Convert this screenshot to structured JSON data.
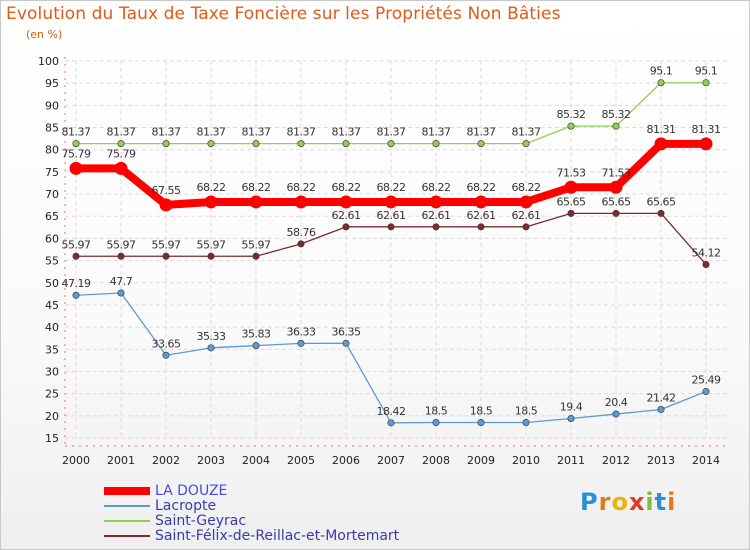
{
  "chart_data": {
    "type": "line",
    "title": "Evolution du Taux de Taxe Foncière sur les Propriétés Non Bâties",
    "ylabel": "(en %)",
    "xlabel": "",
    "ylim": [
      15,
      100
    ],
    "yticks": [
      15,
      20,
      25,
      30,
      35,
      40,
      45,
      50,
      55,
      60,
      65,
      70,
      75,
      80,
      85,
      90,
      95,
      100
    ],
    "x": [
      "2000",
      "2001",
      "2002",
      "2003",
      "2004",
      "2005",
      "2006",
      "2007",
      "2008",
      "2009",
      "2010",
      "2011",
      "2012",
      "2013",
      "2014"
    ],
    "grid": true,
    "legend_position": "bottom-left",
    "series": [
      {
        "name": "LA DOUZE",
        "color": "#ff0000",
        "emphasis": true,
        "values": [
          75.79,
          75.79,
          67.55,
          68.22,
          68.22,
          68.22,
          68.22,
          68.22,
          68.22,
          68.22,
          68.22,
          71.53,
          71.53,
          81.31,
          81.31
        ],
        "labels": [
          "75.79",
          "75.79",
          "67.55",
          "68.22",
          "68.22",
          "68.22",
          "68.22",
          "68.22",
          "68.22",
          "68.22",
          "68.22",
          "71.53",
          "71.53",
          "81.31",
          "81.31"
        ]
      },
      {
        "name": "Lacropte",
        "color": "#5b9bd5",
        "emphasis": false,
        "values": [
          47.19,
          47.7,
          33.65,
          35.33,
          35.83,
          36.33,
          36.35,
          18.42,
          18.5,
          18.5,
          18.5,
          19.4,
          20.4,
          21.42,
          25.49
        ],
        "labels": [
          "47.19",
          "47.7",
          "33.65",
          "35.33",
          "35.83",
          "36.33",
          "36.35",
          "18.42",
          "18.5",
          "18.5",
          "18.5",
          "19.4",
          "20.4",
          "21.42",
          "25.49"
        ]
      },
      {
        "name": "Saint-Geyrac",
        "color": "#90d050",
        "emphasis": false,
        "values": [
          81.37,
          81.37,
          81.37,
          81.37,
          81.37,
          81.37,
          81.37,
          81.37,
          81.37,
          81.37,
          81.37,
          85.32,
          85.32,
          95.1,
          95.1
        ],
        "labels": [
          "81.37",
          "81.37",
          "81.37",
          "81.37",
          "81.37",
          "81.37",
          "81.37",
          "81.37",
          "81.37",
          "81.37",
          "81.37",
          "85.32",
          "85.32",
          "95.1",
          "95.1"
        ]
      },
      {
        "name": "Saint-Félix-de-Reillac-et-Mortemart",
        "color": "#7b2c2c",
        "emphasis": false,
        "values": [
          55.97,
          55.97,
          55.97,
          55.97,
          55.97,
          58.76,
          62.61,
          62.61,
          62.61,
          62.61,
          62.61,
          65.65,
          65.65,
          65.65,
          54.12
        ],
        "labels": [
          "55.97",
          "55.97",
          "55.97",
          "55.97",
          "55.97",
          "58.76",
          "62.61",
          "62.61",
          "62.61",
          "62.61",
          "62.61",
          "65.65",
          "65.65",
          "65.65",
          "54.12"
        ]
      }
    ]
  },
  "logo": {
    "letters": [
      "P",
      "r",
      "o",
      "x",
      "i",
      "t",
      "i"
    ],
    "colors": [
      "#2b8fd6",
      "#e07a1a",
      "#f0b400",
      "#e03a2a",
      "#7ac143",
      "#2b8fd6",
      "#e07a1a"
    ]
  }
}
